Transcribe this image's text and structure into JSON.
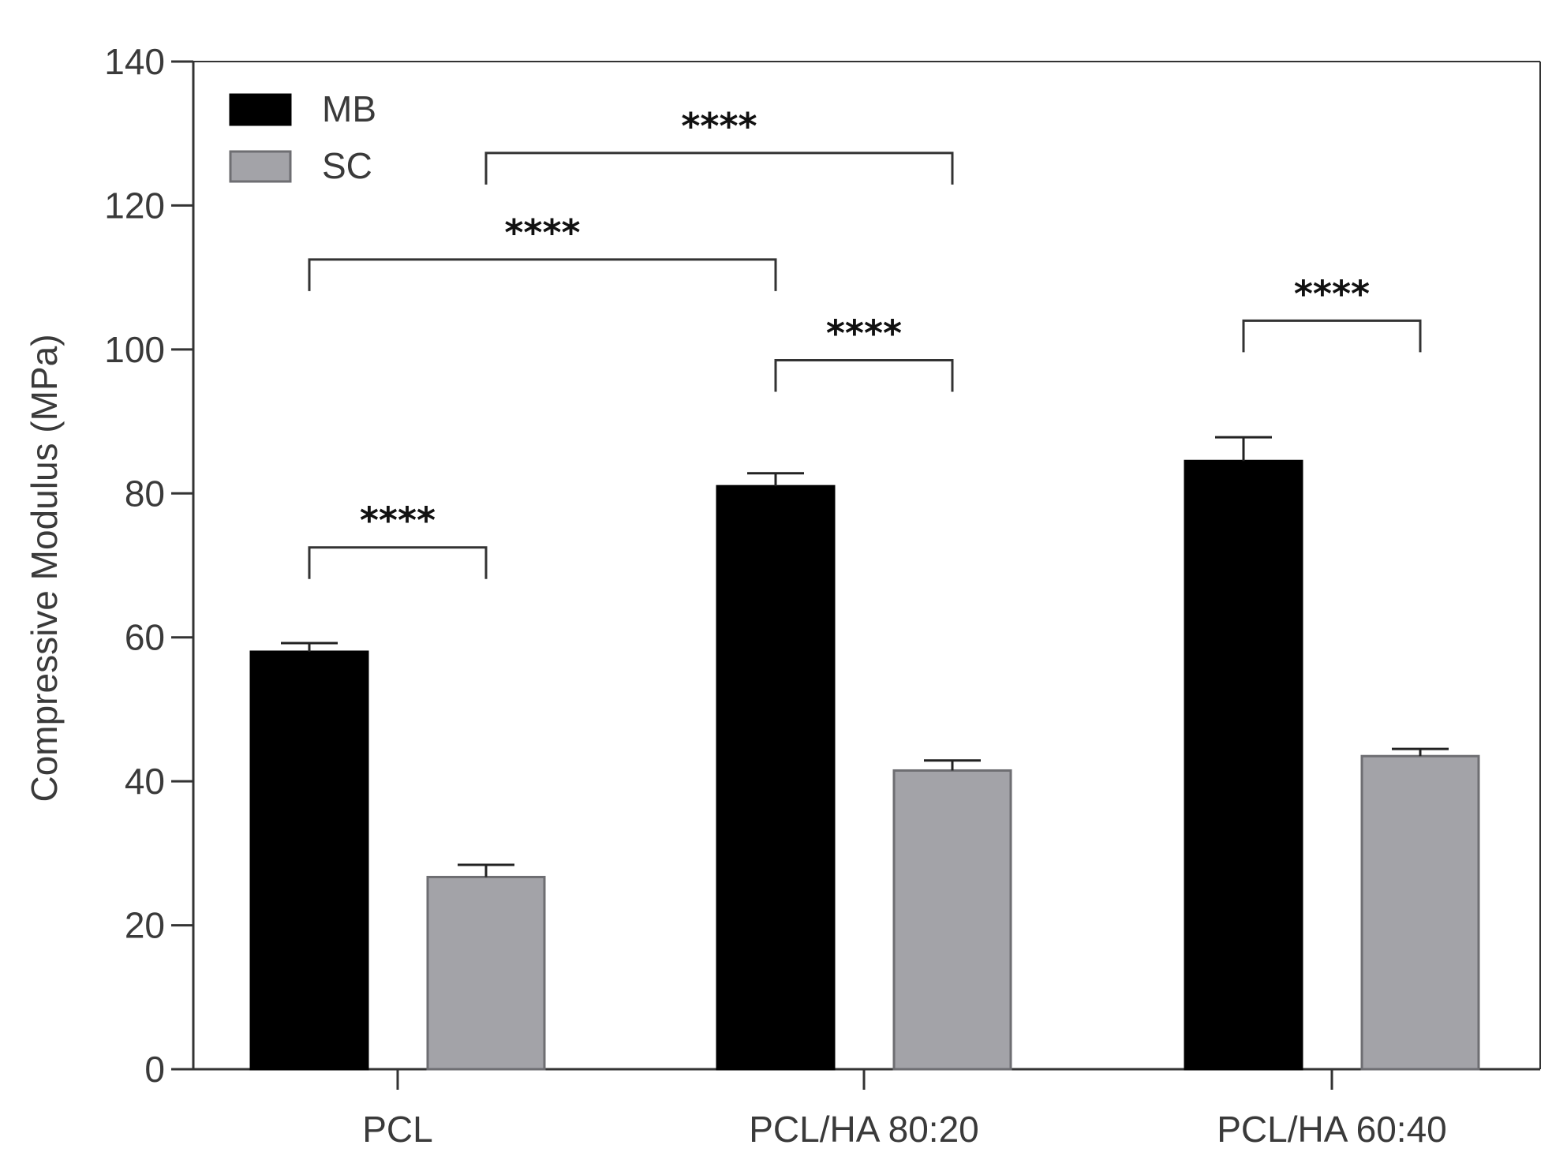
{
  "chart_data": {
    "type": "bar",
    "title": "",
    "xlabel": "",
    "ylabel": "Compressive Modulus (MPa)",
    "ylim": [
      0,
      140
    ],
    "yticks": [
      0,
      20,
      40,
      60,
      80,
      100,
      120,
      140
    ],
    "categories": [
      "PCL",
      "PCL/HA 80:20",
      "PCL/HA 60:40"
    ],
    "series": [
      {
        "name": "MB",
        "color": "#000000",
        "values": [
          58,
          81,
          84.5
        ],
        "errors": [
          1.2,
          1.8,
          3.3
        ]
      },
      {
        "name": "SC",
        "color": "#a3a3a8",
        "values": [
          26.7,
          41.5,
          43.5
        ],
        "errors": [
          1.7,
          1.4,
          1.0
        ]
      }
    ],
    "legend_position": "top-left",
    "grid": false,
    "significance": [
      {
        "label": "****",
        "from": {
          "category": 0,
          "series": 0
        },
        "to": {
          "category": 0,
          "series": 1
        },
        "height": 72.5
      },
      {
        "label": "****",
        "from": {
          "category": 1,
          "series": 0
        },
        "to": {
          "category": 1,
          "series": 1
        },
        "height": 98.5
      },
      {
        "label": "****",
        "from": {
          "category": 2,
          "series": 0
        },
        "to": {
          "category": 2,
          "series": 1
        },
        "height": 104
      },
      {
        "label": "****",
        "from": {
          "category": 0,
          "series": 0
        },
        "to": {
          "category": 1,
          "series": 0
        },
        "height": 112.5
      },
      {
        "label": "****",
        "from": {
          "category": 0,
          "series": 1
        },
        "to": {
          "category": 1,
          "series": 1
        },
        "height": 127.3
      }
    ]
  }
}
